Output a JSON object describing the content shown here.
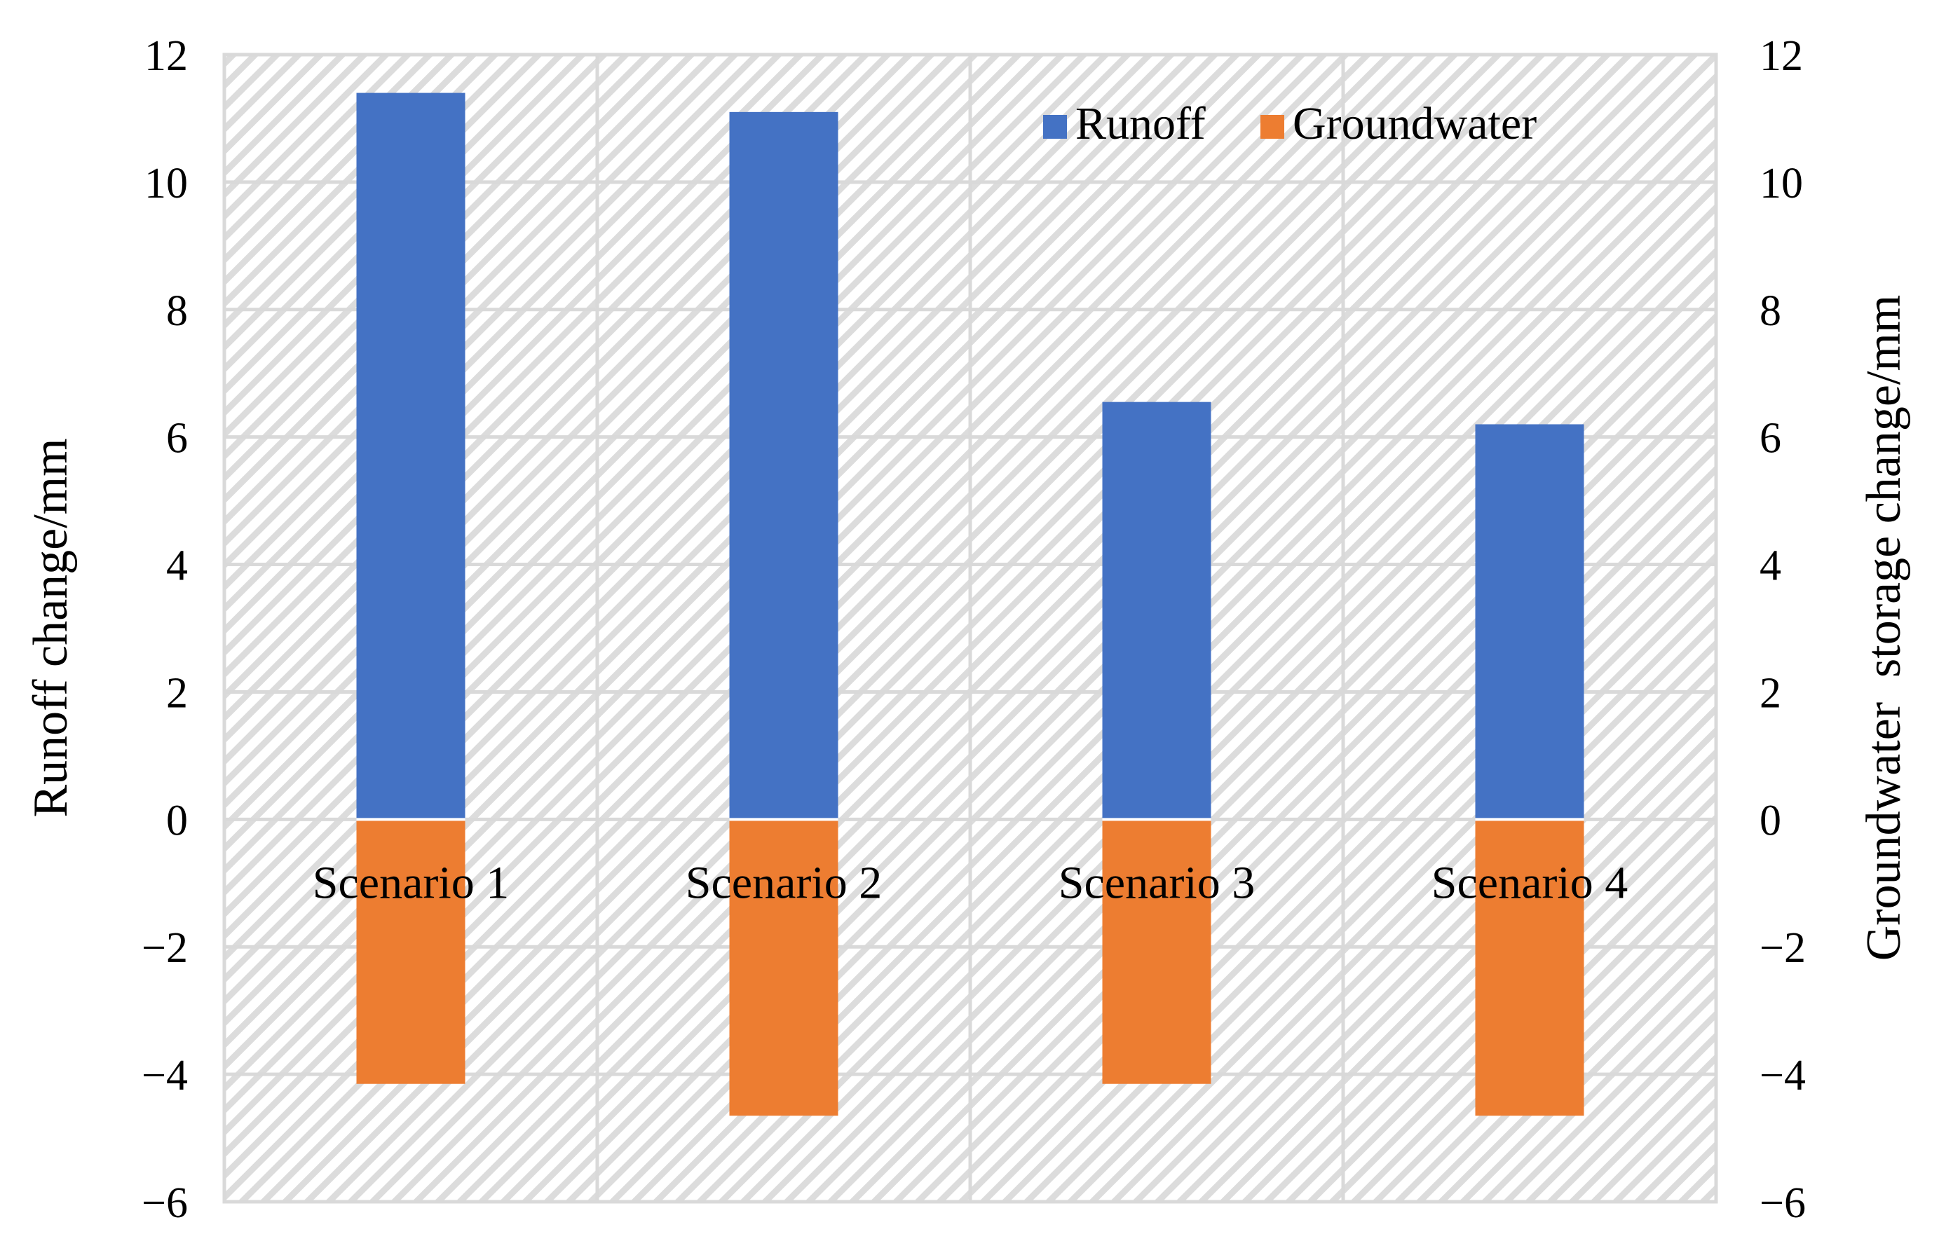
{
  "chart_data": {
    "type": "bar",
    "categories": [
      "Scenario 1",
      "Scenario 2",
      "Scenario 3",
      "Scenario 4"
    ],
    "series": [
      {
        "name": "Runoff",
        "color": "#4472C4",
        "values": [
          11.4,
          11.1,
          6.55,
          6.2
        ]
      },
      {
        "name": "Groundwater",
        "color": "#ED7D31",
        "values": [
          -4.15,
          -4.65,
          -4.15,
          -4.65
        ]
      }
    ],
    "ylabel": "Runoff change/mm",
    "y2label": "Groundwater  storage change/mm",
    "ylim": [
      -6,
      12
    ],
    "y2lim": [
      -6,
      12
    ],
    "yticks": [
      "−6",
      "−4",
      "−2",
      "0",
      "2",
      "4",
      "6",
      "8",
      "10",
      "12"
    ],
    "y2ticks": [
      "−6",
      "−4",
      "−2",
      "0",
      "2",
      "4",
      "6",
      "8",
      "10",
      "12"
    ],
    "grid": true,
    "background_pattern": "diagonal-hatch",
    "legend_position": "top-right"
  }
}
